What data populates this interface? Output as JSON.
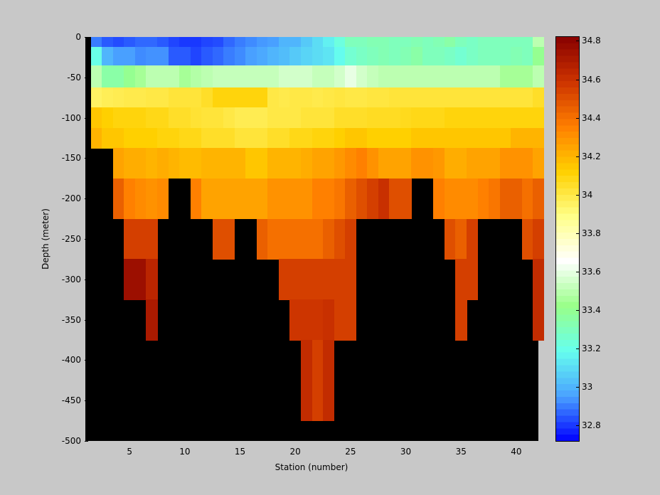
{
  "chart_data": {
    "type": "heatmap",
    "title": "",
    "xlabel": "Station (number)",
    "ylabel": "Depth (meter)",
    "xlim": [
      1,
      42
    ],
    "ylim": [
      -500,
      0
    ],
    "xticks": [
      "5",
      "10",
      "15",
      "20",
      "25",
      "30",
      "35",
      "40"
    ],
    "yticks": [
      "0",
      "-50",
      "-100",
      "-150",
      "-200",
      "-250",
      "-300",
      "-350",
      "-400",
      "-450",
      "-500"
    ],
    "colorbar": {
      "range": [
        32.72,
        34.82
      ],
      "ticks": [
        "34.8",
        "34.6",
        "34.4",
        "34.2",
        "34",
        "33.8",
        "33.6",
        "33.4",
        "33.2",
        "33",
        "32.8"
      ],
      "colormap": "jet-with-white-centre",
      "anchor_colors": [
        "#0000ff",
        "#4aa2ff",
        "#66ffee",
        "#99ff88",
        "#ffffff",
        "#ffff88",
        "#ffd000",
        "#ff7f00",
        "#cc3300",
        "#880000"
      ]
    },
    "nodata_color": "#000000",
    "depth_levels": [
      -5,
      -20,
      -50,
      -75,
      -100,
      -125,
      -150,
      -200,
      -250,
      -300,
      -350,
      -400,
      -450,
      -500
    ],
    "stations": [
      2,
      3,
      4,
      5,
      6,
      7,
      8,
      9,
      10,
      11,
      12,
      13,
      14,
      15,
      16,
      17,
      18,
      19,
      20,
      21,
      22,
      23,
      24,
      25,
      26,
      27,
      28,
      29,
      30,
      31,
      32,
      33,
      34,
      35,
      36,
      37,
      38,
      39,
      40,
      41,
      42
    ],
    "salinity_rows": [
      {
        "depth": -5,
        "values": [
          32.9,
          32.85,
          32.83,
          32.85,
          32.87,
          32.87,
          32.85,
          32.82,
          32.8,
          32.8,
          32.82,
          32.83,
          32.87,
          32.9,
          32.92,
          32.94,
          32.95,
          33.0,
          33.0,
          33.05,
          33.1,
          33.15,
          33.22,
          33.3,
          33.3,
          33.32,
          33.32,
          33.3,
          33.3,
          33.32,
          33.3,
          33.32,
          33.35,
          33.3,
          33.28,
          33.3,
          33.3,
          33.3,
          33.3,
          33.3,
          33.5
        ]
      },
      {
        "depth": -20,
        "values": [
          33.2,
          33.0,
          32.95,
          32.95,
          32.92,
          32.93,
          32.93,
          32.85,
          32.85,
          32.82,
          32.85,
          32.87,
          32.9,
          32.92,
          32.95,
          32.97,
          33.0,
          33.02,
          33.05,
          33.08,
          33.1,
          33.12,
          33.18,
          33.25,
          33.28,
          33.3,
          33.32,
          33.3,
          33.32,
          33.35,
          33.3,
          33.3,
          33.28,
          33.25,
          33.28,
          33.3,
          33.3,
          33.3,
          33.32,
          33.3,
          33.4
        ]
      },
      {
        "depth": -50,
        "values": [
          33.5,
          33.35,
          33.35,
          33.4,
          33.45,
          33.5,
          33.5,
          33.5,
          33.45,
          33.48,
          33.5,
          33.52,
          33.52,
          33.52,
          33.52,
          33.52,
          33.52,
          33.55,
          33.55,
          33.55,
          33.52,
          33.52,
          33.55,
          33.6,
          33.55,
          33.52,
          33.5,
          33.5,
          33.5,
          33.5,
          33.5,
          33.5,
          33.5,
          33.5,
          33.5,
          33.5,
          33.5,
          33.45,
          33.45,
          33.45,
          33.5
        ]
      },
      {
        "depth": -75,
        "values": [
          33.95,
          33.97,
          33.98,
          33.99,
          33.99,
          34.0,
          34.0,
          34.02,
          34.02,
          34.02,
          34.05,
          34.1,
          34.1,
          34.1,
          34.1,
          34.1,
          34.0,
          33.99,
          34.0,
          34.0,
          33.99,
          34.0,
          34.01,
          34.0,
          34.0,
          34.01,
          34.01,
          34.02,
          34.02,
          34.02,
          34.02,
          34.02,
          34.02,
          34.02,
          34.02,
          34.02,
          34.02,
          34.02,
          34.02,
          34.02,
          34.05
        ]
      },
      {
        "depth": -100,
        "values": [
          34.15,
          34.12,
          34.1,
          34.1,
          34.1,
          34.08,
          34.08,
          34.05,
          34.05,
          34.03,
          34.02,
          34.02,
          34.0,
          33.98,
          33.98,
          33.98,
          34.0,
          34.0,
          34.0,
          34.02,
          34.02,
          34.02,
          34.05,
          34.05,
          34.05,
          34.06,
          34.06,
          34.06,
          34.07,
          34.08,
          34.08,
          34.08,
          34.1,
          34.1,
          34.1,
          34.1,
          34.1,
          34.1,
          34.1,
          34.1,
          34.1
        ]
      },
      {
        "depth": -125,
        "values": [
          34.2,
          34.15,
          34.15,
          34.12,
          34.12,
          34.12,
          34.1,
          34.1,
          34.08,
          34.08,
          34.05,
          34.05,
          34.05,
          34.02,
          34.02,
          34.02,
          34.05,
          34.05,
          34.08,
          34.08,
          34.1,
          34.1,
          34.12,
          34.15,
          34.15,
          34.12,
          34.12,
          34.12,
          34.12,
          34.15,
          34.15,
          34.15,
          34.15,
          34.15,
          34.15,
          34.15,
          34.15,
          34.15,
          34.2,
          34.2,
          34.2
        ]
      },
      {
        "depth": -150,
        "values": [
          null,
          null,
          34.25,
          34.22,
          34.22,
          34.2,
          34.22,
          34.2,
          34.18,
          34.18,
          34.2,
          34.2,
          34.2,
          34.2,
          34.15,
          34.15,
          34.2,
          34.2,
          34.2,
          34.22,
          34.25,
          34.25,
          34.28,
          34.32,
          34.35,
          34.3,
          34.25,
          34.25,
          34.25,
          34.3,
          34.3,
          34.28,
          34.22,
          34.22,
          34.25,
          34.25,
          34.25,
          34.3,
          34.3,
          34.3,
          34.25
        ]
      },
      {
        "depth": -200,
        "values": [
          null,
          null,
          34.45,
          34.35,
          34.32,
          34.3,
          34.32,
          null,
          null,
          34.35,
          34.25,
          34.25,
          34.25,
          34.25,
          34.25,
          34.25,
          34.3,
          34.3,
          34.3,
          34.3,
          34.35,
          34.35,
          34.38,
          34.45,
          34.5,
          34.55,
          34.6,
          34.5,
          34.5,
          null,
          null,
          34.35,
          34.32,
          34.32,
          34.32,
          34.35,
          34.38,
          34.45,
          34.45,
          34.4,
          34.45
        ]
      },
      {
        "depth": -250,
        "values": [
          null,
          null,
          null,
          34.55,
          34.55,
          34.55,
          null,
          null,
          null,
          null,
          null,
          34.5,
          34.5,
          null,
          null,
          34.45,
          34.4,
          34.4,
          34.4,
          34.4,
          34.4,
          34.45,
          34.5,
          34.55,
          null,
          null,
          null,
          null,
          null,
          null,
          null,
          null,
          34.5,
          34.45,
          34.55,
          null,
          null,
          null,
          null,
          34.5,
          34.55
        ]
      },
      {
        "depth": -300,
        "values": [
          null,
          null,
          null,
          34.75,
          34.75,
          34.65,
          null,
          null,
          null,
          null,
          null,
          null,
          null,
          null,
          null,
          null,
          null,
          34.55,
          34.55,
          34.55,
          34.55,
          34.55,
          34.55,
          34.55,
          null,
          null,
          null,
          null,
          null,
          null,
          null,
          null,
          null,
          34.55,
          34.55,
          null,
          null,
          null,
          null,
          null,
          34.62
        ]
      },
      {
        "depth": -350,
        "values": [
          null,
          null,
          null,
          null,
          null,
          34.7,
          null,
          null,
          null,
          null,
          null,
          null,
          null,
          null,
          null,
          null,
          null,
          null,
          34.58,
          34.58,
          34.58,
          34.6,
          34.55,
          34.55,
          null,
          null,
          null,
          null,
          null,
          null,
          null,
          null,
          null,
          34.55,
          null,
          null,
          null,
          null,
          null,
          null,
          34.62
        ]
      },
      {
        "depth": -400,
        "values": [
          null,
          null,
          null,
          null,
          null,
          null,
          null,
          null,
          null,
          null,
          null,
          null,
          null,
          null,
          null,
          null,
          null,
          null,
          null,
          34.62,
          34.55,
          34.62,
          null,
          null,
          null,
          null,
          null,
          null,
          null,
          null,
          null,
          null,
          null,
          null,
          null,
          null,
          null,
          null,
          null,
          null,
          null
        ]
      },
      {
        "depth": -450,
        "values": [
          null,
          null,
          null,
          null,
          null,
          null,
          null,
          null,
          null,
          null,
          null,
          null,
          null,
          null,
          null,
          null,
          null,
          null,
          null,
          34.62,
          34.55,
          34.62,
          null,
          null,
          null,
          null,
          null,
          null,
          null,
          null,
          null,
          null,
          null,
          null,
          null,
          null,
          null,
          null,
          null,
          null,
          null
        ]
      },
      {
        "depth": -500,
        "values": [
          null,
          null,
          null,
          null,
          null,
          null,
          null,
          null,
          null,
          null,
          null,
          null,
          null,
          null,
          null,
          null,
          null,
          null,
          null,
          null,
          null,
          null,
          null,
          null,
          null,
          null,
          null,
          null,
          null,
          null,
          null,
          null,
          null,
          null,
          null,
          null,
          null,
          null,
          null,
          null,
          null
        ]
      }
    ]
  }
}
